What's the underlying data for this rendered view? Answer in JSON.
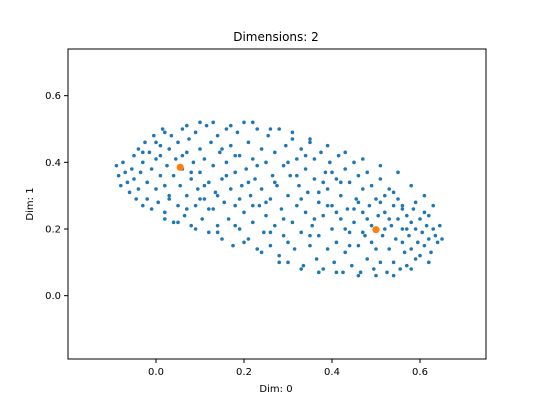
{
  "chart_data": {
    "type": "scatter",
    "title": "Dimensions: 2",
    "xlabel": "Dim: 0",
    "ylabel": "Dim: 1",
    "xlim": [
      -0.2,
      0.75
    ],
    "ylim": [
      -0.19,
      0.74
    ],
    "xticks": [
      0.0,
      0.2,
      0.4,
      0.6
    ],
    "yticks": [
      0.0,
      0.2,
      0.4,
      0.6
    ],
    "xtick_labels": [
      "0.0",
      "0.2",
      "0.4",
      "0.6"
    ],
    "ytick_labels": [
      "0.0",
      "0.2",
      "0.4",
      "0.6"
    ],
    "grid": false,
    "series": [
      {
        "color": "#1f77b4",
        "points": [
          [
            -0.09,
            0.39
          ],
          [
            -0.085,
            0.36
          ],
          [
            -0.08,
            0.33
          ],
          [
            -0.075,
            0.4
          ],
          [
            -0.07,
            0.37
          ],
          [
            -0.065,
            0.34
          ],
          [
            -0.06,
            0.31
          ],
          [
            -0.055,
            0.38
          ],
          [
            -0.05,
            0.35
          ],
          [
            -0.05,
            0.42
          ],
          [
            -0.045,
            0.29
          ],
          [
            -0.04,
            0.32
          ],
          [
            -0.04,
            0.44
          ],
          [
            -0.035,
            0.37
          ],
          [
            -0.03,
            0.27
          ],
          [
            -0.03,
            0.4
          ],
          [
            -0.025,
            0.46
          ],
          [
            -0.02,
            0.34
          ],
          [
            -0.02,
            0.29
          ],
          [
            -0.015,
            0.43
          ],
          [
            -0.01,
            0.26
          ],
          [
            -0.01,
            0.38
          ],
          [
            -0.005,
            0.48
          ],
          [
            0.0,
            0.32
          ],
          [
            0.0,
            0.41
          ],
          [
            0.005,
            0.28
          ],
          [
            0.01,
            0.36
          ],
          [
            0.01,
            0.45
          ],
          [
            0.015,
            0.5
          ],
          [
            0.02,
            0.25
          ],
          [
            0.02,
            0.33
          ],
          [
            0.025,
            0.39
          ],
          [
            0.03,
            0.44
          ],
          [
            0.03,
            0.29
          ],
          [
            0.035,
            0.48
          ],
          [
            0.04,
            0.36
          ],
          [
            0.04,
            0.22
          ],
          [
            0.045,
            0.41
          ],
          [
            0.05,
            0.27
          ],
          [
            0.05,
            0.46
          ],
          [
            0.055,
            0.33
          ],
          [
            0.06,
            0.5
          ],
          [
            0.06,
            0.38
          ],
          [
            0.065,
            0.24
          ],
          [
            0.07,
            0.43
          ],
          [
            0.07,
            0.3
          ],
          [
            0.075,
            0.47
          ],
          [
            0.08,
            0.35
          ],
          [
            0.08,
            0.21
          ],
          [
            0.085,
            0.4
          ],
          [
            0.09,
            0.27
          ],
          [
            0.09,
            0.49
          ],
          [
            0.095,
            0.32
          ],
          [
            0.1,
            0.44
          ],
          [
            0.1,
            0.37
          ],
          [
            0.105,
            0.23
          ],
          [
            0.11,
            0.41
          ],
          [
            0.11,
            0.29
          ],
          [
            0.115,
            0.51
          ],
          [
            0.12,
            0.34
          ],
          [
            0.12,
            0.19
          ],
          [
            0.125,
            0.46
          ],
          [
            0.13,
            0.26
          ],
          [
            0.13,
            0.39
          ],
          [
            0.135,
            0.31
          ],
          [
            0.14,
            0.48
          ],
          [
            0.14,
            0.21
          ],
          [
            0.145,
            0.43
          ],
          [
            0.15,
            0.35
          ],
          [
            0.15,
            0.17
          ],
          [
            0.155,
            0.28
          ],
          [
            0.16,
            0.5
          ],
          [
            0.16,
            0.4
          ],
          [
            0.165,
            0.23
          ],
          [
            0.17,
            0.45
          ],
          [
            0.17,
            0.32
          ],
          [
            0.175,
            0.15
          ],
          [
            0.18,
            0.37
          ],
          [
            0.18,
            0.27
          ],
          [
            0.185,
            0.49
          ],
          [
            0.19,
            0.2
          ],
          [
            0.19,
            0.42
          ],
          [
            0.195,
            0.33
          ],
          [
            0.2,
            0.52
          ],
          [
            0.2,
            0.25
          ],
          [
            0.205,
            0.38
          ],
          [
            0.21,
            0.17
          ],
          [
            0.21,
            0.46
          ],
          [
            0.215,
            0.3
          ],
          [
            0.22,
            0.41
          ],
          [
            0.22,
            0.22
          ],
          [
            0.225,
            0.35
          ],
          [
            0.23,
            0.5
          ],
          [
            0.23,
            0.14
          ],
          [
            0.235,
            0.27
          ],
          [
            0.24,
            0.44
          ],
          [
            0.24,
            0.32
          ],
          [
            0.245,
            0.19
          ],
          [
            0.25,
            0.4
          ],
          [
            0.25,
            0.24
          ],
          [
            0.255,
            0.48
          ],
          [
            0.26,
            0.29
          ],
          [
            0.26,
            0.15
          ],
          [
            0.265,
            0.36
          ],
          [
            0.27,
            0.43
          ],
          [
            0.27,
            0.21
          ],
          [
            0.275,
            0.33
          ],
          [
            0.28,
            0.5
          ],
          [
            0.28,
            0.12
          ],
          [
            0.285,
            0.26
          ],
          [
            0.29,
            0.39
          ],
          [
            0.29,
            0.18
          ],
          [
            0.295,
            0.45
          ],
          [
            0.3,
            0.3
          ],
          [
            0.3,
            0.1
          ],
          [
            0.305,
            0.36
          ],
          [
            0.31,
            0.22
          ],
          [
            0.31,
            0.47
          ],
          [
            0.315,
            0.14
          ],
          [
            0.32,
            0.41
          ],
          [
            0.32,
            0.27
          ],
          [
            0.325,
            0.33
          ],
          [
            0.33,
            0.19
          ],
          [
            0.33,
            0.44
          ],
          [
            0.335,
            0.09
          ],
          [
            0.34,
            0.38
          ],
          [
            0.34,
            0.25
          ],
          [
            0.345,
            0.31
          ],
          [
            0.35,
            0.15
          ],
          [
            0.35,
            0.46
          ],
          [
            0.355,
            0.21
          ],
          [
            0.36,
            0.35
          ],
          [
            0.36,
            0.41
          ],
          [
            0.365,
            0.11
          ],
          [
            0.37,
            0.28
          ],
          [
            0.37,
            0.18
          ],
          [
            0.375,
            0.43
          ],
          [
            0.38,
            0.24
          ],
          [
            0.38,
            0.08
          ],
          [
            0.385,
            0.37
          ],
          [
            0.39,
            0.14
          ],
          [
            0.39,
            0.32
          ],
          [
            0.395,
            0.4
          ],
          [
            0.4,
            0.2
          ],
          [
            0.4,
            0.27
          ],
          [
            0.405,
            0.1
          ],
          [
            0.41,
            0.35
          ],
          [
            0.41,
            0.16
          ],
          [
            0.415,
            0.42
          ],
          [
            0.42,
            0.23
          ],
          [
            0.42,
            0.3
          ],
          [
            0.425,
            0.07
          ],
          [
            0.43,
            0.38
          ],
          [
            0.43,
            0.13
          ],
          [
            0.435,
            0.26
          ],
          [
            0.44,
            0.19
          ],
          [
            0.44,
            0.34
          ],
          [
            0.445,
            0.09
          ],
          [
            0.45,
            0.4
          ],
          [
            0.45,
            0.22
          ],
          [
            0.455,
            0.29
          ],
          [
            0.46,
            0.15
          ],
          [
            0.46,
            0.36
          ],
          [
            0.465,
            0.07
          ],
          [
            0.47,
            0.25
          ],
          [
            0.47,
            0.32
          ],
          [
            0.475,
            0.18
          ],
          [
            0.48,
            0.11
          ],
          [
            0.48,
            0.37
          ],
          [
            0.485,
            0.27
          ],
          [
            0.49,
            0.21
          ],
          [
            0.49,
            0.33
          ],
          [
            0.495,
            0.08
          ],
          [
            0.5,
            0.14
          ],
          [
            0.5,
            0.29
          ],
          [
            0.505,
            0.24
          ],
          [
            0.51,
            0.35
          ],
          [
            0.51,
            0.1
          ],
          [
            0.515,
            0.18
          ],
          [
            0.52,
            0.3
          ],
          [
            0.52,
            0.25
          ],
          [
            0.525,
            0.07
          ],
          [
            0.53,
            0.32
          ],
          [
            0.53,
            0.14
          ],
          [
            0.535,
            0.21
          ],
          [
            0.54,
            0.27
          ],
          [
            0.54,
            0.1
          ],
          [
            0.545,
            0.17
          ],
          [
            0.55,
            0.29
          ],
          [
            0.55,
            0.23
          ],
          [
            0.555,
            0.08
          ],
          [
            0.56,
            0.2
          ],
          [
            0.56,
            0.26
          ],
          [
            0.565,
            0.13
          ],
          [
            0.57,
            0.24
          ],
          [
            0.57,
            0.09
          ],
          [
            0.575,
            0.18
          ],
          [
            0.58,
            0.22
          ],
          [
            0.58,
            0.14
          ],
          [
            0.585,
            0.26
          ],
          [
            0.59,
            0.11
          ],
          [
            0.59,
            0.2
          ],
          [
            0.595,
            0.16
          ],
          [
            0.6,
            0.23
          ],
          [
            0.6,
            0.12
          ],
          [
            0.605,
            0.19
          ],
          [
            0.61,
            0.25
          ],
          [
            0.61,
            0.15
          ],
          [
            0.615,
            0.21
          ],
          [
            0.62,
            0.17
          ],
          [
            0.62,
            0.24
          ],
          [
            0.625,
            0.13
          ],
          [
            0.63,
            0.2
          ],
          [
            0.635,
            0.18
          ],
          [
            0.64,
            0.16
          ],
          [
            0.645,
            0.21
          ],
          [
            0.65,
            0.17
          ],
          [
            0.0,
            0.46
          ],
          [
            0.02,
            0.49
          ],
          [
            0.07,
            0.51
          ],
          [
            0.1,
            0.52
          ],
          [
            0.13,
            0.52
          ],
          [
            0.17,
            0.51
          ],
          [
            0.22,
            0.52
          ],
          [
            0.26,
            0.5
          ],
          [
            0.31,
            0.49
          ],
          [
            0.35,
            0.47
          ],
          [
            0.39,
            0.45
          ],
          [
            0.43,
            0.43
          ],
          [
            0.47,
            0.41
          ],
          [
            0.51,
            0.39
          ],
          [
            0.55,
            0.37
          ],
          [
            0.58,
            0.33
          ],
          [
            0.61,
            0.3
          ],
          [
            0.63,
            0.27
          ],
          [
            0.02,
            0.23
          ],
          [
            0.05,
            0.22
          ],
          [
            0.09,
            0.2
          ],
          [
            0.14,
            0.19
          ],
          [
            0.2,
            0.16
          ],
          [
            0.24,
            0.13
          ],
          [
            0.28,
            0.1
          ],
          [
            0.33,
            0.08
          ],
          [
            0.37,
            0.07
          ],
          [
            0.41,
            0.07
          ],
          [
            0.46,
            0.06
          ],
          [
            0.5,
            0.06
          ],
          [
            0.54,
            0.06
          ],
          [
            0.58,
            0.08
          ],
          [
            0.62,
            0.1
          ],
          [
            -0.03,
            0.43
          ],
          [
            0.01,
            0.42
          ],
          [
            0.08,
            0.37
          ],
          [
            0.12,
            0.26
          ],
          [
            0.16,
            0.36
          ],
          [
            0.19,
            0.29
          ],
          [
            0.23,
            0.39
          ],
          [
            0.27,
            0.34
          ],
          [
            0.3,
            0.4
          ],
          [
            0.33,
            0.29
          ],
          [
            0.36,
            0.23
          ],
          [
            0.39,
            0.27
          ],
          [
            0.42,
            0.34
          ],
          [
            0.45,
            0.26
          ],
          [
            0.48,
            0.23
          ],
          [
            0.52,
            0.2
          ],
          [
            0.56,
            0.16
          ],
          [
            0.59,
            0.28
          ],
          [
            0.07,
            0.26
          ],
          [
            0.11,
            0.33
          ],
          [
            0.15,
            0.44
          ],
          [
            0.18,
            0.21
          ],
          [
            0.21,
            0.34
          ],
          [
            0.25,
            0.28
          ],
          [
            0.29,
            0.23
          ],
          [
            0.32,
            0.36
          ],
          [
            0.35,
            0.18
          ],
          [
            0.38,
            0.34
          ],
          [
            0.41,
            0.25
          ],
          [
            0.44,
            0.15
          ],
          [
            0.47,
            0.19
          ],
          [
            0.51,
            0.28
          ],
          [
            0.54,
            0.31
          ],
          [
            0.57,
            0.2
          ],
          [
            0.03,
            0.3
          ],
          [
            0.06,
            0.42
          ],
          [
            0.1,
            0.29
          ],
          [
            0.14,
            0.3
          ],
          [
            0.18,
            0.42
          ],
          [
            0.22,
            0.27
          ],
          [
            0.26,
            0.19
          ],
          [
            0.3,
            0.16
          ],
          [
            0.34,
            0.42
          ],
          [
            0.37,
            0.31
          ],
          [
            0.4,
            0.37
          ],
          [
            0.43,
            0.2
          ],
          [
            0.46,
            0.28
          ],
          [
            0.49,
            0.16
          ],
          [
            0.53,
            0.23
          ],
          [
            0.56,
            0.27
          ]
        ]
      },
      {
        "color": "#ff7f0e",
        "points": [
          [
            0.055,
            0.385
          ],
          [
            0.5,
            0.198
          ]
        ]
      }
    ]
  }
}
